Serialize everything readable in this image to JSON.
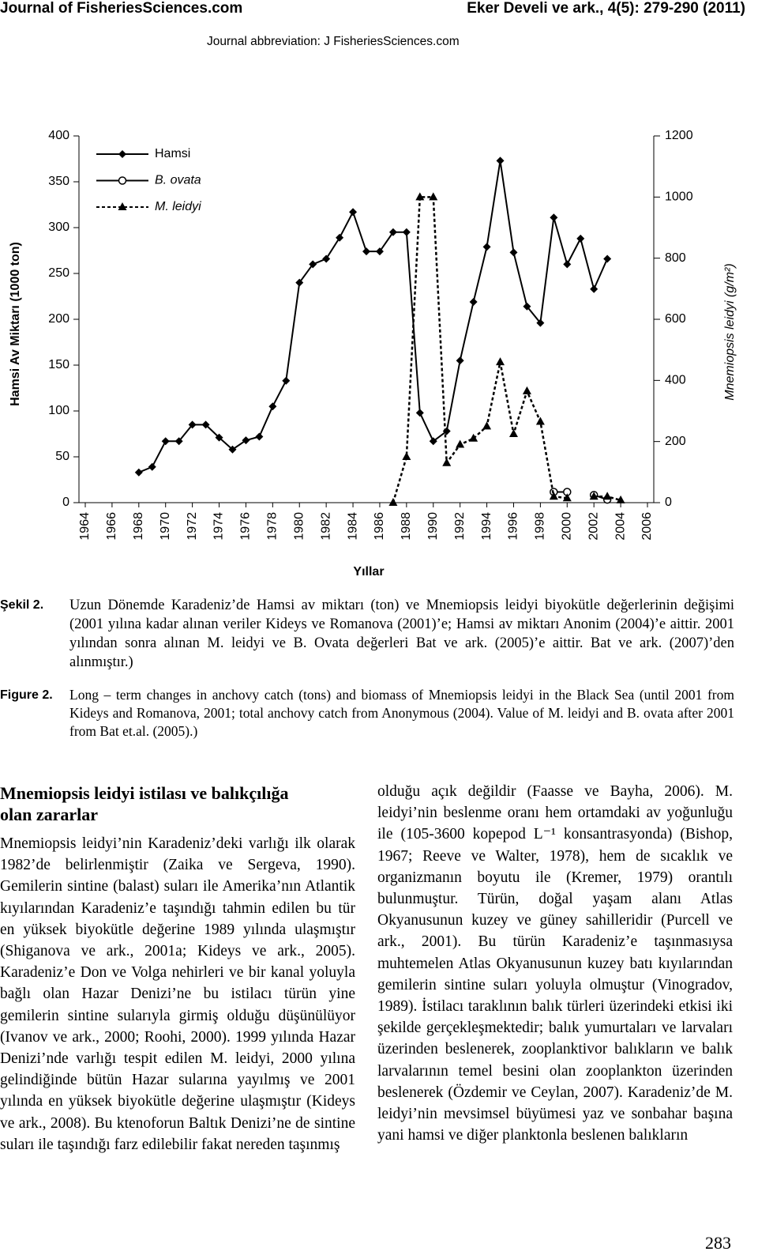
{
  "header": {
    "journal": "Journal of FisheriesSciences.com",
    "citation": "Eker Develi ve ark., 4(5): 279-290 (2011)",
    "abbreviation": "Journal abbreviation: J FisheriesSciences.com"
  },
  "chart_data": {
    "type": "line",
    "xlabel": "Yıllar",
    "ylabel": "Hamsi Av Miktarı (1000 ton)",
    "y2label": "Mnemiopsis leidyi (g/m²)",
    "x": [
      1968,
      1969,
      1970,
      1971,
      1972,
      1973,
      1974,
      1975,
      1976,
      1977,
      1978,
      1979,
      1980,
      1981,
      1982,
      1983,
      1984,
      1985,
      1986,
      1987,
      1988,
      1989,
      1990,
      1991,
      1992,
      1993,
      1994,
      1995,
      1996,
      1997,
      1998,
      1999,
      2000,
      2001,
      2002,
      2003,
      2004
    ],
    "xlim": [
      1964,
      2006
    ],
    "xticks": [
      1964,
      1966,
      1968,
      1970,
      1972,
      1974,
      1976,
      1978,
      1980,
      1982,
      1984,
      1986,
      1988,
      1990,
      1992,
      1994,
      1996,
      1998,
      2000,
      2002,
      2004,
      2006
    ],
    "ylim": [
      0,
      400
    ],
    "yticks": [
      0,
      50,
      100,
      150,
      200,
      250,
      300,
      350,
      400
    ],
    "y2lim": [
      0,
      1200
    ],
    "y2ticks": [
      0,
      200,
      400,
      600,
      800,
      1000,
      1200
    ],
    "legend": "top-left",
    "series": [
      {
        "name": "Hamsi",
        "color": "#000000",
        "marker": "diamond",
        "dash": false,
        "values": [
          33,
          39,
          67,
          67,
          85,
          85,
          71,
          58,
          68,
          72,
          105,
          133,
          240,
          260,
          266,
          289,
          317,
          274,
          274,
          295,
          295,
          98,
          67,
          78,
          155,
          219,
          279,
          373,
          273,
          214,
          196,
          311,
          260,
          288,
          233,
          266,
          null
        ]
      },
      {
        "name": "B. ovata",
        "color": "#000000",
        "marker": "circle",
        "dash": false,
        "axis": "y2",
        "values": [
          null,
          null,
          null,
          null,
          null,
          null,
          null,
          null,
          null,
          null,
          null,
          null,
          null,
          null,
          null,
          null,
          null,
          null,
          null,
          null,
          null,
          null,
          null,
          null,
          null,
          null,
          null,
          null,
          null,
          null,
          null,
          35,
          35,
          null,
          25,
          10,
          null
        ]
      },
      {
        "name": "M. leidyi",
        "color": "#000000",
        "marker": "triangle",
        "dash": true,
        "axis": "y2",
        "values": [
          null,
          null,
          null,
          null,
          null,
          null,
          null,
          null,
          null,
          null,
          null,
          null,
          null,
          null,
          null,
          null,
          null,
          null,
          null,
          0,
          150,
          1000,
          1000,
          130,
          190,
          210,
          250,
          460,
          225,
          365,
          265,
          20,
          15,
          null,
          20,
          20,
          8
        ]
      }
    ]
  },
  "caption": {
    "tr_label": "Şekil 2.",
    "tr_text": "Uzun Dönemde Karadeniz’de Hamsi av miktarı (ton) ve Mnemiopsis leidyi biyokütle değerlerinin değişimi (2001 yılına kadar alınan veriler Kideys ve Romanova (2001)’e; Hamsi av miktarı Anonim (2004)’e aittir. 2001 yılından sonra alınan M. leidyi ve B. Ovata değerleri Bat ve ark. (2005)’e aittir. Bat ve ark. (2007)’den alınmıştır.)",
    "en_label": "Figure 2.",
    "en_text": "Long – term changes in anchovy catch (tons) and biomass of Mnemiopsis leidyi in the Black Sea (until 2001 from Kideys and Romanova, 2001; total anchovy catch from Anonymous (2004). Value of M. leidyi and B. ovata after 2001 from Bat et.al. (2005).)"
  },
  "body": {
    "heading": "Mnemiopsis leidyi istilası ve balıkçılığa olan zararlar",
    "left": "Mnemiopsis leidyi’nin Karadeniz’deki varlığı ilk olarak 1982’de belirlenmiştir (Zaika ve Sergeva, 1990). Gemilerin sintine (balast) suları ile Amerika’nın Atlantik kıyılarından Karadeniz’e taşındığı tahmin edilen bu tür en yüksek biyokütle değerine 1989 yılında ulaşmıştır (Shiganova ve ark., 2001a; Kideys ve ark., 2005). Karadeniz’e Don ve Volga nehirleri ve bir kanal yoluyla bağlı olan Hazar Denizi’ne bu istilacı türün yine gemilerin sintine sularıyla girmiş olduğu düşünülüyor (Ivanov ve ark., 2000; Roohi, 2000). 1999 yılında Hazar Denizi’nde varlığı tespit edilen M. leidyi, 2000 yılına gelindiğinde bütün Hazar sularına yayılmış ve 2001 yılında en yüksek biyokütle değerine ulaşmıştır (Kideys ve ark., 2008). Bu ktenoforun Baltık Denizi’ne de sintine suları ile taşındığı farz edilebilir fakat nereden taşınmış",
    "right": "olduğu açık değildir (Faasse ve Bayha, 2006). M. leidyi’nin beslenme oranı hem ortamdaki av yoğunluğu ile (105-3600 kopepod L⁻¹ konsantrasyonda) (Bishop, 1967; Reeve ve Walter, 1978), hem de sıcaklık ve organizmanın boyutu ile (Kremer, 1979) orantılı bulunmuştur. Türün, doğal yaşam alanı Atlas Okyanusunun kuzey ve güney sahilleridir (Purcell ve ark., 2001). Bu türün Karadeniz’e taşınmasıysa muhtemelen Atlas Okyanusunun kuzey batı kıyılarından gemilerin sintine suları yoluyla olmuştur (Vinogradov, 1989). İstilacı taraklının balık türleri üzerindeki etkisi iki şekilde gerçekleşmektedir; balık yumurtaları ve larvaları üzerinden beslenerek, zooplanktivor balıkların ve balık larvalarının temel besini olan zooplankton üzerinden beslenerek (Özdemir ve Ceylan, 2007). Karadeniz’de M. leidyi’nin mevsimsel büyümesi yaz ve sonbahar başına yani hamsi ve diğer planktonla beslenen balıkların"
  },
  "page_number": "283"
}
